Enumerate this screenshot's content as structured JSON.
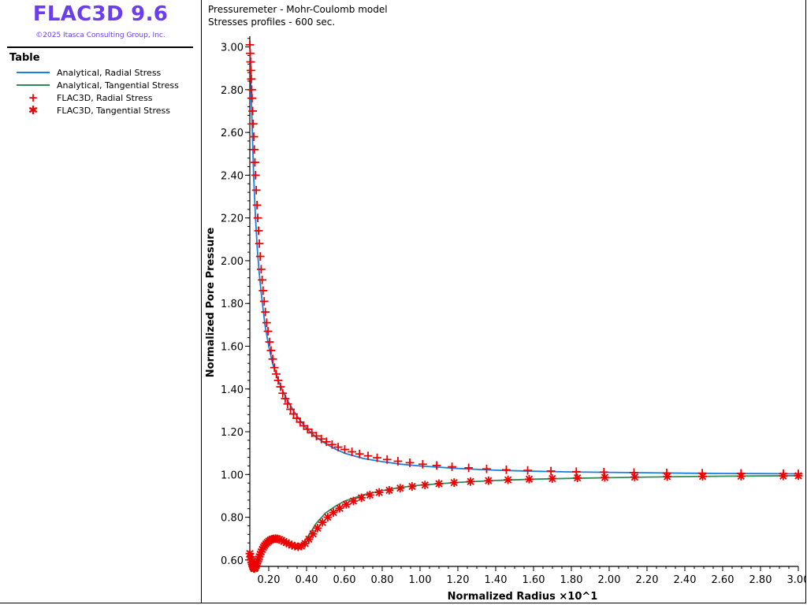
{
  "app": {
    "title": "FLAC3D 9.6",
    "copyright": "©2025 Itasca Consulting Group, Inc."
  },
  "legend": {
    "title": "Table",
    "items": [
      {
        "label": "Analytical, Radial Stress",
        "kind": "line",
        "color": "#1a7fe0"
      },
      {
        "label": "Analytical, Tangential Stress",
        "kind": "line",
        "color": "#2e8b57"
      },
      {
        "label": "FLAC3D, Radial Stress",
        "kind": "marker",
        "symbol": "plus",
        "color": "#ee0000"
      },
      {
        "label": "FLAC3D, Tangential Stress",
        "kind": "marker",
        "symbol": "asterisk",
        "color": "#ee0000"
      }
    ]
  },
  "plot": {
    "title": "Pressuremeter - Mohr-Coulomb model",
    "subtitle": "Stresses profiles - 600 sec."
  },
  "chart_data": {
    "type": "line",
    "xlabel": "Normalized Radius ×10^1",
    "ylabel": "Normalized Pore Pressure",
    "xlim": [
      0.1,
      3.0
    ],
    "ylim": [
      0.57,
      3.05
    ],
    "xticks": [
      0.2,
      0.4,
      0.6,
      0.8,
      1.0,
      1.2,
      1.4,
      1.6,
      1.8,
      2.0,
      2.2,
      2.4,
      2.6,
      2.8,
      3.0
    ],
    "xtick_labels": [
      "0.20",
      "0.40",
      "0.60",
      "0.80",
      "1.00",
      "1.20",
      "1.40",
      "1.60",
      "1.80",
      "2.00",
      "2.20",
      "2.40",
      "2.60",
      "2.80",
      "3.00"
    ],
    "yticks": [
      0.6,
      0.8,
      1.0,
      1.2,
      1.4,
      1.6,
      1.8,
      2.0,
      2.2,
      2.4,
      2.6,
      2.8,
      3.0
    ],
    "ytick_labels": [
      "0.60",
      "0.80",
      "1.00",
      "1.20",
      "1.40",
      "1.60",
      "1.80",
      "2.00",
      "2.20",
      "2.40",
      "2.60",
      "2.80",
      "3.00"
    ],
    "grid": false,
    "series": [
      {
        "name": "Analytical, Radial Stress",
        "style": "line",
        "color": "#1a7fe0",
        "x": [
          0.1,
          0.105,
          0.11,
          0.115,
          0.12,
          0.13,
          0.14,
          0.15,
          0.16,
          0.18,
          0.2,
          0.22,
          0.25,
          0.28,
          0.3,
          0.33,
          0.36,
          0.4,
          0.45,
          0.5,
          0.55,
          0.6,
          0.7,
          0.8,
          0.9,
          1.0,
          1.2,
          1.4,
          1.6,
          1.8,
          2.0,
          2.2,
          2.4,
          2.6,
          2.8,
          3.0
        ],
        "y": [
          3.03,
          2.85,
          2.7,
          2.55,
          2.4,
          2.2,
          2.05,
          1.94,
          1.85,
          1.7,
          1.6,
          1.52,
          1.44,
          1.38,
          1.345,
          1.3,
          1.26,
          1.215,
          1.175,
          1.145,
          1.12,
          1.1,
          1.075,
          1.06,
          1.048,
          1.04,
          1.028,
          1.02,
          1.015,
          1.012,
          1.01,
          1.008,
          1.006,
          1.005,
          1.004,
          1.003
        ]
      },
      {
        "name": "Analytical, Tangential Stress",
        "style": "line",
        "color": "#2e8b57",
        "x": [
          0.1,
          0.105,
          0.11,
          0.115,
          0.12,
          0.125,
          0.13,
          0.14,
          0.15,
          0.16,
          0.18,
          0.2,
          0.22,
          0.25,
          0.27,
          0.3,
          0.33,
          0.35,
          0.37,
          0.4,
          0.45,
          0.5,
          0.55,
          0.6,
          0.7,
          0.8,
          0.9,
          1.0,
          1.2,
          1.4,
          1.6,
          1.8,
          2.0,
          2.2,
          2.4,
          2.6,
          2.8,
          3.0
        ],
        "y": [
          0.63,
          0.6,
          0.58,
          0.57,
          0.56,
          0.56,
          0.57,
          0.6,
          0.63,
          0.65,
          0.675,
          0.69,
          0.698,
          0.698,
          0.69,
          0.675,
          0.665,
          0.66,
          0.668,
          0.7,
          0.77,
          0.82,
          0.85,
          0.875,
          0.905,
          0.925,
          0.94,
          0.95,
          0.963,
          0.972,
          0.978,
          0.982,
          0.985,
          0.988,
          0.99,
          0.992,
          0.993,
          0.994
        ]
      },
      {
        "name": "FLAC3D, Radial Stress",
        "style": "marker",
        "symbol": "plus",
        "color": "#ee0000",
        "x": [
          0.1,
          0.102,
          0.104,
          0.106,
          0.108,
          0.11,
          0.112,
          0.115,
          0.118,
          0.121,
          0.124,
          0.127,
          0.13,
          0.134,
          0.138,
          0.142,
          0.146,
          0.15,
          0.155,
          0.16,
          0.165,
          0.17,
          0.176,
          0.182,
          0.189,
          0.196,
          0.204,
          0.212,
          0.221,
          0.23,
          0.24,
          0.25,
          0.262,
          0.274,
          0.287,
          0.3,
          0.315,
          0.331,
          0.348,
          0.366,
          0.385,
          0.405,
          0.428,
          0.452,
          0.478,
          0.505,
          0.535,
          0.567,
          0.602,
          0.64,
          0.68,
          0.725,
          0.773,
          0.826,
          0.883,
          0.946,
          1.014,
          1.088,
          1.169,
          1.257,
          1.352,
          1.456,
          1.569,
          1.692,
          1.826,
          1.972,
          2.131,
          2.304,
          2.492,
          2.697,
          2.921,
          3.0
        ],
        "y": [
          3.01,
          2.97,
          2.93,
          2.89,
          2.85,
          2.8,
          2.76,
          2.7,
          2.64,
          2.58,
          2.52,
          2.46,
          2.4,
          2.33,
          2.26,
          2.2,
          2.14,
          2.08,
          2.02,
          1.96,
          1.91,
          1.86,
          1.81,
          1.76,
          1.71,
          1.67,
          1.62,
          1.58,
          1.54,
          1.5,
          1.47,
          1.44,
          1.41,
          1.38,
          1.355,
          1.33,
          1.305,
          1.283,
          1.263,
          1.245,
          1.228,
          1.212,
          1.195,
          1.18,
          1.166,
          1.153,
          1.14,
          1.128,
          1.117,
          1.106,
          1.096,
          1.087,
          1.078,
          1.07,
          1.062,
          1.055,
          1.048,
          1.042,
          1.036,
          1.031,
          1.026,
          1.022,
          1.019,
          1.016,
          1.013,
          1.011,
          1.009,
          1.007,
          1.006,
          1.005,
          1.004,
          1.003
        ]
      },
      {
        "name": "FLAC3D, Tangential Stress",
        "style": "marker",
        "symbol": "asterisk",
        "color": "#ee0000",
        "x": [
          0.1,
          0.103,
          0.106,
          0.109,
          0.112,
          0.115,
          0.118,
          0.121,
          0.124,
          0.127,
          0.13,
          0.134,
          0.138,
          0.142,
          0.146,
          0.15,
          0.155,
          0.16,
          0.166,
          0.172,
          0.178,
          0.185,
          0.192,
          0.2,
          0.208,
          0.217,
          0.226,
          0.236,
          0.246,
          0.257,
          0.268,
          0.28,
          0.293,
          0.307,
          0.322,
          0.338,
          0.355,
          0.373,
          0.392,
          0.412,
          0.434,
          0.458,
          0.484,
          0.512,
          0.542,
          0.575,
          0.61,
          0.648,
          0.69,
          0.735,
          0.784,
          0.837,
          0.895,
          0.958,
          1.026,
          1.1,
          1.18,
          1.267,
          1.362,
          1.465,
          1.577,
          1.699,
          1.832,
          1.977,
          2.135,
          2.307,
          2.494,
          2.697,
          2.92,
          3.0
        ],
        "y": [
          0.63,
          0.615,
          0.6,
          0.59,
          0.58,
          0.57,
          0.565,
          0.56,
          0.56,
          0.562,
          0.567,
          0.575,
          0.585,
          0.595,
          0.605,
          0.615,
          0.627,
          0.638,
          0.649,
          0.659,
          0.667,
          0.675,
          0.682,
          0.688,
          0.693,
          0.697,
          0.699,
          0.7,
          0.699,
          0.696,
          0.692,
          0.687,
          0.681,
          0.675,
          0.669,
          0.665,
          0.662,
          0.665,
          0.677,
          0.697,
          0.722,
          0.749,
          0.776,
          0.8,
          0.822,
          0.842,
          0.86,
          0.876,
          0.891,
          0.904,
          0.916,
          0.926,
          0.936,
          0.944,
          0.951,
          0.957,
          0.962,
          0.967,
          0.971,
          0.975,
          0.978,
          0.981,
          0.984,
          0.986,
          0.988,
          0.99,
          0.991,
          0.992,
          0.993,
          0.994
        ]
      }
    ]
  }
}
